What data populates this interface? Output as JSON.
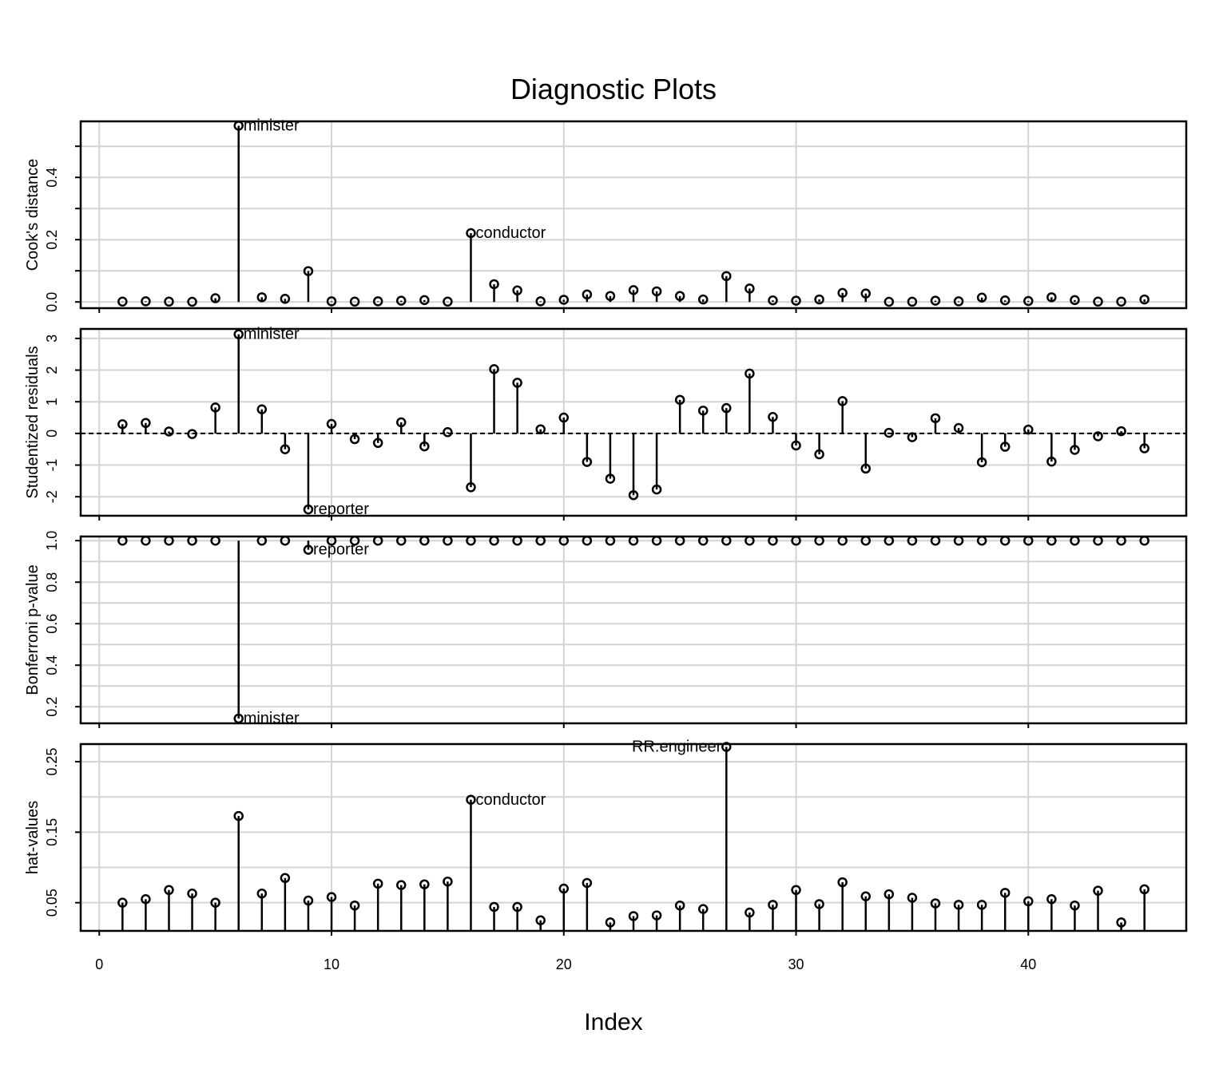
{
  "chart_data": {
    "type": "lollipop",
    "title": "Diagnostic Plots",
    "xlabel": "Index",
    "x_ticks": [
      0,
      10,
      20,
      30,
      40
    ],
    "xlim": [
      -0.8,
      46.8
    ],
    "panels": [
      {
        "name": "cooks",
        "ylabel": "Cook's distance",
        "ylim": [
          -0.02,
          0.58
        ],
        "y_ticks": [
          0.0,
          0.1,
          0.2,
          0.3,
          0.4,
          0.5
        ],
        "y_tick_labels": [
          "0.0",
          "",
          "0.2",
          "",
          "0.4",
          ""
        ],
        "gridlines": [
          0.0,
          0.1,
          0.2,
          0.3,
          0.4,
          0.5
        ],
        "baseline": 0,
        "values": [
          0.001,
          0.002,
          0.001,
          0.0005,
          0.012,
          0.566,
          0.015,
          0.01,
          0.099,
          0.002,
          0.001,
          0.002,
          0.004,
          0.006,
          0.001,
          0.221,
          0.057,
          0.037,
          0.002,
          0.007,
          0.024,
          0.019,
          0.038,
          0.034,
          0.019,
          0.008,
          0.083,
          0.043,
          0.005,
          0.004,
          0.008,
          0.029,
          0.027,
          0.0005,
          0.0007,
          0.004,
          0.002,
          0.014,
          0.005,
          0.003,
          0.015,
          0.006,
          0.001,
          0.001,
          0.008
        ],
        "labels": [
          {
            "index": 6,
            "text": "minister",
            "side": "right"
          },
          {
            "index": 16,
            "text": "conductor",
            "side": "right"
          }
        ]
      },
      {
        "name": "studentized",
        "ylabel": "Studentized residuals",
        "ylim": [
          -2.6,
          3.3
        ],
        "y_ticks": [
          -2,
          -1,
          0,
          1,
          2,
          3
        ],
        "y_tick_labels": [
          "-2",
          "-1",
          "0",
          "1",
          "2",
          "3"
        ],
        "gridlines": [
          -2,
          -1,
          0,
          1,
          2,
          3
        ],
        "baseline": 0,
        "dashed_baseline": true,
        "values": [
          0.29,
          0.33,
          0.06,
          -0.02,
          0.82,
          3.13,
          0.76,
          -0.5,
          -2.4,
          0.3,
          -0.18,
          -0.3,
          0.35,
          -0.41,
          0.04,
          -1.7,
          2.03,
          1.6,
          0.13,
          0.5,
          -0.9,
          -1.43,
          -1.95,
          -1.77,
          1.06,
          0.72,
          0.8,
          1.89,
          0.52,
          -0.38,
          -0.66,
          1.02,
          -1.11,
          0.02,
          -0.12,
          0.48,
          0.17,
          -0.91,
          -0.42,
          0.12,
          -0.89,
          -0.52,
          -0.09,
          0.07,
          -0.47
        ],
        "labels": [
          {
            "index": 6,
            "text": "minister",
            "side": "right"
          },
          {
            "index": 9,
            "text": "reporter",
            "side": "right"
          }
        ]
      },
      {
        "name": "bonferroni",
        "ylabel": "Bonferroni p-value",
        "ylim": [
          0.12,
          1.02
        ],
        "y_ticks": [
          0.2,
          0.4,
          0.6,
          0.8,
          1.0
        ],
        "y_tick_labels": [
          "0.2",
          "0.4",
          "0.6",
          "0.8",
          "1.0"
        ],
        "gridlines": [
          0.2,
          0.3,
          0.4,
          0.5,
          0.6,
          0.7,
          0.8,
          0.9,
          1.0
        ],
        "baseline": 1.0,
        "values": [
          1,
          1,
          1,
          1,
          1,
          0.143,
          1,
          1,
          0.956,
          1,
          1,
          1,
          1,
          1,
          1,
          1,
          1,
          1,
          1,
          1,
          1,
          1,
          1,
          1,
          1,
          1,
          1,
          1,
          1,
          1,
          1,
          1,
          1,
          1,
          1,
          1,
          1,
          1,
          1,
          1,
          1,
          1,
          1,
          1,
          1
        ],
        "labels": [
          {
            "index": 6,
            "text": "minister",
            "side": "right"
          },
          {
            "index": 9,
            "text": "reporter",
            "side": "right"
          }
        ]
      },
      {
        "name": "hat",
        "ylabel": "hat-values",
        "ylim": [
          0.01,
          0.275
        ],
        "y_ticks": [
          0.05,
          0.15,
          0.25
        ],
        "y_tick_labels": [
          "0.05",
          "0.15",
          "0.25"
        ],
        "gridlines": [
          0.05,
          0.1,
          0.15,
          0.2,
          0.25
        ],
        "baseline": 0.01,
        "values": [
          0.05,
          0.055,
          0.068,
          0.063,
          0.05,
          0.173,
          0.063,
          0.085,
          0.053,
          0.058,
          0.046,
          0.077,
          0.075,
          0.076,
          0.08,
          0.196,
          0.044,
          0.044,
          0.025,
          0.07,
          0.078,
          0.022,
          0.031,
          0.032,
          0.046,
          0.041,
          0.271,
          0.036,
          0.047,
          0.068,
          0.048,
          0.079,
          0.059,
          0.062,
          0.057,
          0.049,
          0.047,
          0.047,
          0.064,
          0.052,
          0.055,
          0.046,
          0.067,
          0.022,
          0.069
        ],
        "labels": [
          {
            "index": 16,
            "text": "conductor",
            "side": "right"
          },
          {
            "index": 27,
            "text": "RR.engineer",
            "side": "left"
          }
        ]
      }
    ]
  }
}
